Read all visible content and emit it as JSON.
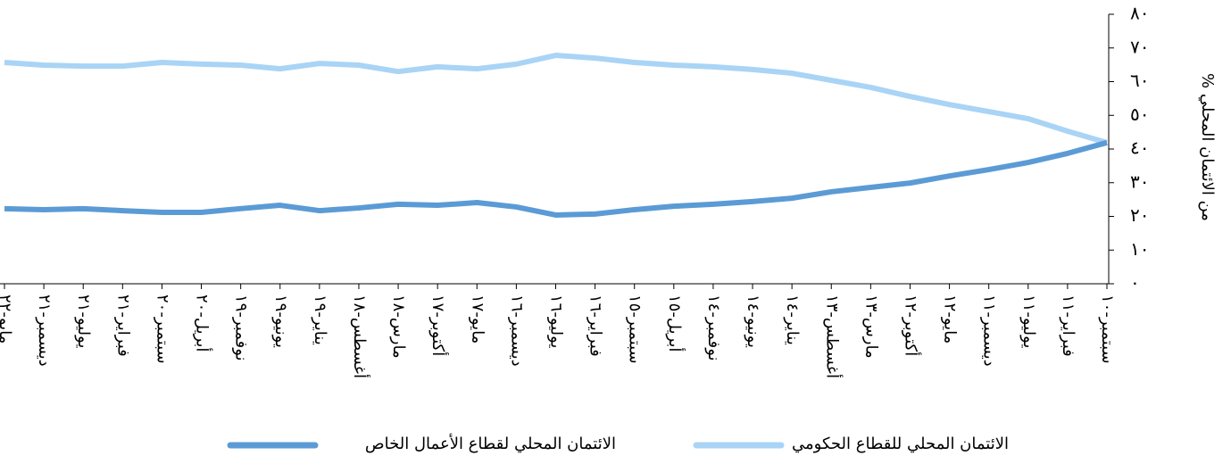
{
  "chart_data": {
    "type": "line",
    "y_label": "% من الائتمان المحلي",
    "categories": [
      "سبتمبر-١٠",
      "فبراير-١١",
      "يوليو-١١",
      "ديسمبر-١١",
      "مايو-١٢",
      "أكتوبر-١٢",
      "مارس-١٣",
      "أغسطس-١٣",
      "يناير-١٤",
      "يونيو-١٤",
      "نوفمبر-١٤",
      "أبريل-١٥",
      "سبتمبر-١٥",
      "فبراير-١٦",
      "يوليو-١٦",
      "ديسمبر-١٦",
      "مايو-١٧",
      "أكتوبر-١٧",
      "مارس-١٨",
      "أغسطس-١٨",
      "يناير-١٩",
      "يونيو-١٩",
      "نوفمبر-١٩",
      "أبريل-٢٠",
      "سبتمبر-٢٠",
      "فبراير-٢١",
      "يوليو-٢١",
      "ديسمبر-٢١",
      "مايو-٢٢"
    ],
    "series": [
      {
        "name": "الائتمان المحلي للقطاع الحكومي",
        "color": "#a9d4f5",
        "values": [
          41.9,
          45.3,
          49,
          51.1,
          53.2,
          55.6,
          58.3,
          60.4,
          62.5,
          63.6,
          64.4,
          64.9,
          65.7,
          67,
          67.8,
          65.2,
          63.8,
          64.4,
          63,
          64.9,
          65.4,
          63.8,
          64.9,
          65.2,
          65.7,
          64.6,
          64.6,
          64.9,
          65.7
        ]
      },
      {
        "name": "الائتمان المحلي لقطاع الأعمال الخاص",
        "color": "#5b9bd5",
        "values": [
          41.9,
          38.7,
          36,
          33.9,
          32,
          29.9,
          28.6,
          27.3,
          25.4,
          24.4,
          23.6,
          23,
          22,
          20.7,
          20.4,
          22.8,
          24.1,
          23.3,
          23.6,
          22.5,
          21.7,
          23.3,
          22.3,
          21.2,
          21.2,
          21.7,
          22.3,
          22,
          22.3
        ]
      }
    ],
    "ylim": [
      0,
      80
    ],
    "yticks": [
      {
        "value": 0,
        "label": "٠"
      },
      {
        "value": 10,
        "label": "١٠"
      },
      {
        "value": 20,
        "label": "٢٠"
      },
      {
        "value": 30,
        "label": "٣٠"
      },
      {
        "value": 40,
        "label": "٤٠"
      },
      {
        "value": 50,
        "label": "٥٠"
      },
      {
        "value": 60,
        "label": "٦٠"
      },
      {
        "value": 70,
        "label": "٧٠"
      },
      {
        "value": 80,
        "label": "٨٠"
      }
    ],
    "x_reversed": true,
    "y_axis_side": "right",
    "legend": "bottom"
  }
}
